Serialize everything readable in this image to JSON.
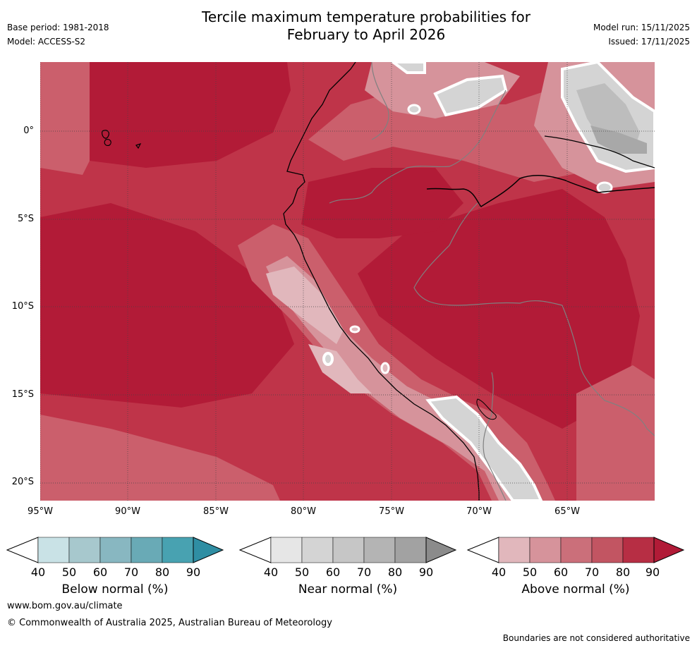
{
  "header": {
    "title_line1": "Tercile maximum temperature probabilities for",
    "title_line2": "February to April 2026",
    "base_period": "Base period: 1981-2018",
    "model": "Model: ACCESS-S2",
    "model_run": "Model run: 15/11/2025",
    "issued": "Issued: 17/11/2025"
  },
  "map": {
    "lat_labels": [
      "0°",
      "5°S",
      "10°S",
      "15°S",
      "20°S"
    ],
    "lon_labels": [
      "95°W",
      "90°W",
      "85°W",
      "80°W",
      "75°W",
      "70°W",
      "65°W"
    ],
    "colors": {
      "above_90": "#b21b37",
      "above_80": "#bf3449",
      "above_70": "#cb5f6c",
      "above_60": "#d6939b",
      "above_50": "#e1b7bc",
      "near_50": "#d4d4d4",
      "near_60": "#bdbdbd",
      "near_70": "#a8a8a8",
      "white": "#ffffff",
      "grid": "#444444",
      "coast": "#000000",
      "border": "#808080"
    }
  },
  "colorbars": {
    "below": {
      "label": "Below normal (%)",
      "ticks": [
        "40",
        "50",
        "60",
        "70",
        "80",
        "90"
      ],
      "colors": [
        "#c9e2e6",
        "#a7c8cd",
        "#88b7c1",
        "#69aab6",
        "#48a2b1",
        "#2f8ea3"
      ]
    },
    "near": {
      "label": "Near normal (%)",
      "ticks": [
        "40",
        "50",
        "60",
        "70",
        "80",
        "90"
      ],
      "colors": [
        "#e6e6e6",
        "#d4d4d4",
        "#c6c6c6",
        "#b4b4b4",
        "#a2a2a2",
        "#8b8b8b"
      ]
    },
    "above": {
      "label": "Above normal (%)",
      "ticks": [
        "40",
        "50",
        "60",
        "70",
        "80",
        "90"
      ],
      "colors": [
        "#e1b7bc",
        "#d6939b",
        "#cb6f7a",
        "#c25562",
        "#b72e44",
        "#b11b37"
      ]
    }
  },
  "footer": {
    "website": "www.bom.gov.au/climate",
    "copyright": "© Commonwealth of Australia 2025, Australian Bureau of Meteorology",
    "disclaimer": "Boundaries are not considered authoritative"
  }
}
